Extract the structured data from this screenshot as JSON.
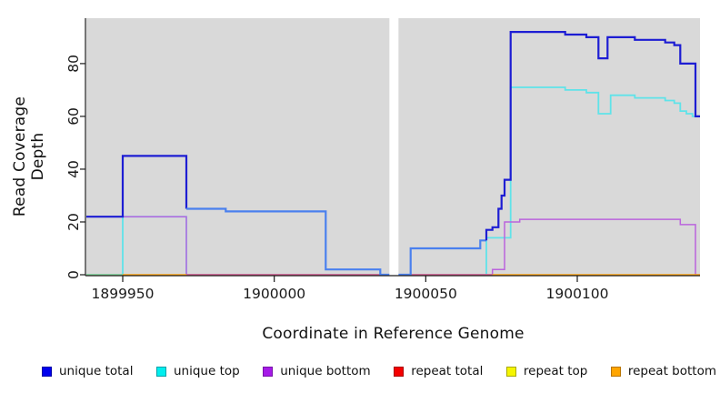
{
  "figure": {
    "title": "",
    "x_axis_title": "Coordinate in Reference Genome",
    "y_axis_title": "Read Coverage Depth",
    "page_bg": "#ffffff",
    "plot_bg": "#d9d9d9",
    "axis_color": "#1a1a1a"
  },
  "chart_data": {
    "type": "line",
    "subtype": "step-coverage",
    "title": "",
    "xlabel": "Coordinate in Reference Genome",
    "ylabel": "Read Coverage Depth",
    "xlim": [
      1899938,
      1900140.5
    ],
    "ylim": [
      0,
      97.2
    ],
    "xticks": [
      1899950,
      1900000,
      1900050,
      1900100
    ],
    "yticks": [
      0,
      20,
      40,
      60,
      80
    ],
    "grid": false,
    "legend_position": "bottom",
    "gap_region": {
      "from": 1900038,
      "to": 1900041,
      "color": "#ffffff"
    },
    "series": [
      {
        "name": "unique total",
        "legend_color": "#0000ee",
        "color": "#1d1dd3",
        "bright_color": "#4a80ee",
        "layer": 3,
        "width": 2.2,
        "segments": [
          {
            "tone": "dark",
            "points": [
              [
                1899938,
                22
              ],
              [
                1899950,
                45
              ],
              [
                1899971,
                25
              ]
            ]
          },
          {
            "tone": "bright",
            "points": [
              [
                1899971,
                25
              ],
              [
                1899984,
                24
              ],
              [
                1900017,
                2
              ],
              [
                1900035,
                0
              ],
              [
                1900042,
                0
              ],
              [
                1900045,
                10
              ],
              [
                1900068,
                13
              ],
              [
                1900070,
                13
              ]
            ]
          },
          {
            "tone": "dark",
            "points": [
              [
                1900070,
                13
              ],
              [
                1900070,
                17
              ],
              [
                1900072,
                18
              ],
              [
                1900074,
                25
              ],
              [
                1900075,
                30
              ],
              [
                1900076,
                36
              ],
              [
                1900078,
                92
              ],
              [
                1900096,
                91
              ],
              [
                1900103,
                90
              ],
              [
                1900107,
                82
              ],
              [
                1900110,
                90
              ],
              [
                1900119,
                89
              ],
              [
                1900129,
                88
              ],
              [
                1900132,
                87
              ],
              [
                1900134,
                80
              ],
              [
                1900139,
                60
              ],
              [
                1900140.5,
                60
              ]
            ]
          }
        ]
      },
      {
        "name": "unique top",
        "legend_color": "#00eeee",
        "color": "#5fe3e9",
        "layer": 1,
        "width": 1.8,
        "points": [
          [
            1899938,
            0
          ],
          [
            1899950,
            22
          ],
          [
            1899971,
            0
          ],
          [
            1900070,
            14
          ],
          [
            1900078,
            71
          ],
          [
            1900096,
            70
          ],
          [
            1900103,
            69
          ],
          [
            1900107,
            61
          ],
          [
            1900111,
            68
          ],
          [
            1900119,
            67
          ],
          [
            1900129,
            66
          ],
          [
            1900132,
            65
          ],
          [
            1900134,
            62
          ],
          [
            1900136,
            61
          ],
          [
            1900138,
            60
          ],
          [
            1900140.5,
            60
          ]
        ]
      },
      {
        "name": "unique bottom",
        "legend_color": "#a020f0",
        "color": "#bb64dd",
        "layer": 2,
        "width": 1.5,
        "points": [
          [
            1899938,
            22
          ],
          [
            1899971,
            0
          ],
          [
            1900072,
            2
          ],
          [
            1900076,
            20
          ],
          [
            1900081,
            21
          ],
          [
            1900134,
            19
          ],
          [
            1900139,
            0
          ],
          [
            1900140.5,
            0
          ]
        ]
      },
      {
        "name": "repeat total",
        "legend_color": "#f50000",
        "color": "#dd5f87",
        "layer": 0,
        "width": 1.4,
        "points": [
          [
            1899938,
            0
          ],
          [
            1900140.5,
            0
          ]
        ]
      },
      {
        "name": "repeat top",
        "legend_color": "#f5f500",
        "color": "#d9d94a",
        "layer": 0,
        "width": 1.4,
        "points": [
          [
            1899938,
            0
          ],
          [
            1900140.5,
            0
          ]
        ]
      },
      {
        "name": "repeat bottom",
        "legend_color": "#ffa500",
        "color": "#ffa512",
        "layer": 0,
        "width": 1.4,
        "points": [
          [
            1899938,
            0
          ],
          [
            1900140.5,
            0
          ]
        ]
      }
    ],
    "baseline_overlap_segments": [
      {
        "from": 1899938,
        "to": 1899950,
        "color": "#8fce8f"
      },
      {
        "from": 1899950,
        "to": 1899971,
        "color": "#ffa512"
      },
      {
        "from": 1899971,
        "to": 1900038,
        "color": "#dd5f87"
      },
      {
        "from": 1900041,
        "to": 1900072,
        "color": "#dd5f87"
      },
      {
        "from": 1900072,
        "to": 1900140.5,
        "color": "#ffa512"
      }
    ]
  },
  "legend": {
    "items": [
      {
        "label": "unique total",
        "fill": "#0000ee",
        "border": "#0000a8"
      },
      {
        "label": "unique top",
        "fill": "#00eeee",
        "border": "#00a0a8"
      },
      {
        "label": "unique bottom",
        "fill": "#a61ae8",
        "border": "#7612a8"
      },
      {
        "label": "repeat total",
        "fill": "#f50000",
        "border": "#a80000"
      },
      {
        "label": "repeat top",
        "fill": "#f5f500",
        "border": "#a8a800"
      },
      {
        "label": "repeat bottom",
        "fill": "#ffa500",
        "border": "#b87400"
      }
    ]
  }
}
